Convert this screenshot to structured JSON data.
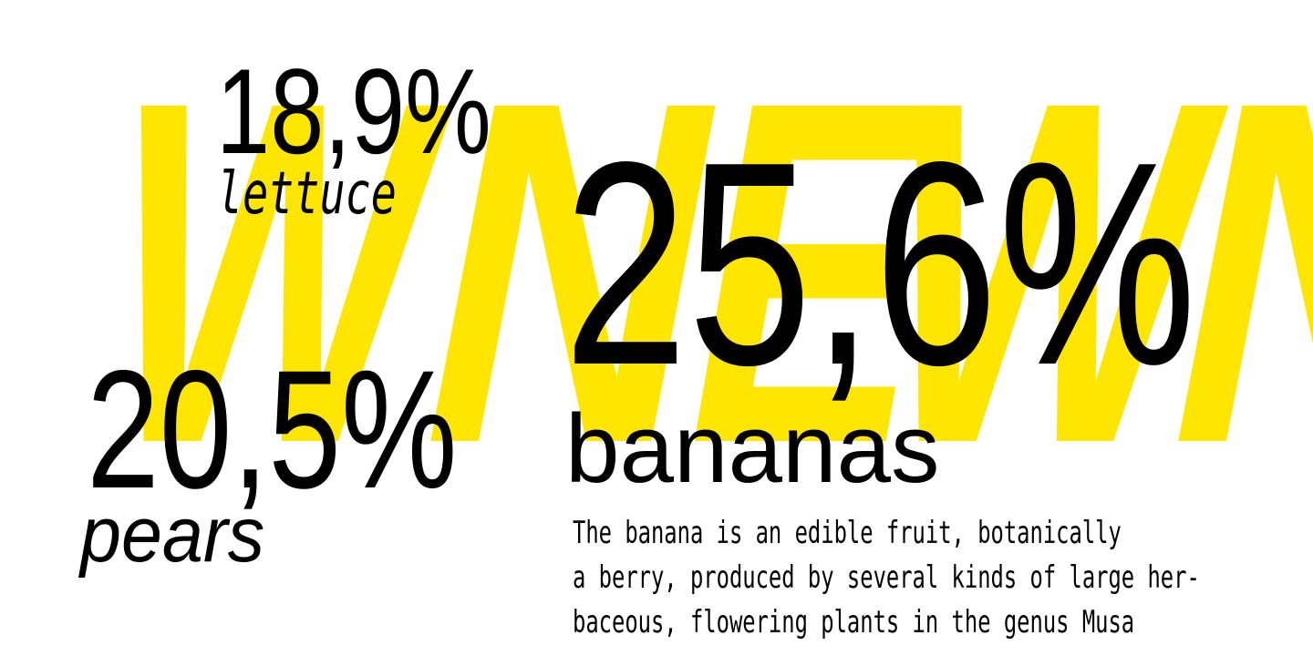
{
  "poster": {
    "background_word": "NEW",
    "background_letters": [
      "E",
      "W",
      "N",
      "E",
      "W",
      "N"
    ],
    "stats": [
      {
        "value": "18,9%",
        "label": "lettuce"
      },
      {
        "value": "20,5%",
        "label": "pears"
      },
      {
        "value": "25,6%",
        "label": "bananas",
        "description_lines": [
          "The banana is an edible fruit, botanically",
          "a berry, produced by several kinds of large her-",
          "baceous, flowering plants in the genus Musa"
        ]
      }
    ]
  },
  "colors": {
    "background": "#FFFFFF",
    "accent_yellow": "#FFE600",
    "text_black": "#000000"
  },
  "chart_data": {
    "type": "table",
    "categories": [
      "lettuce",
      "pears",
      "bananas"
    ],
    "values": [
      18.9,
      20.5,
      25.6
    ],
    "unit": "%"
  }
}
